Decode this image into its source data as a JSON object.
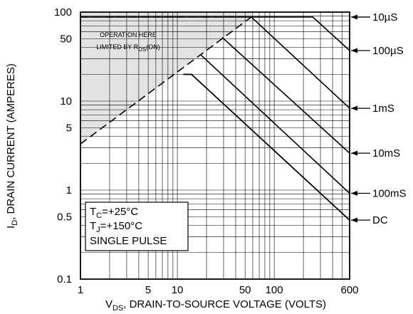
{
  "chart_data": {
    "type": "line",
    "x_axis": {
      "scale": "log",
      "range": [
        1,
        600
      ],
      "ticks": [
        {
          "value": 1,
          "label": "1"
        },
        {
          "value": 5,
          "label": "5"
        },
        {
          "value": 10,
          "label": "10"
        },
        {
          "value": 50,
          "label": "50"
        },
        {
          "value": 100,
          "label": "100"
        },
        {
          "value": 600,
          "label": "600"
        }
      ],
      "label_parts": [
        "V",
        "DS",
        ", DRAIN-TO-SOURCE VOLTAGE (VOLTS)"
      ]
    },
    "y_axis": {
      "scale": "log",
      "range": [
        0.1,
        100
      ],
      "ticks": [
        {
          "value": 100,
          "label": "100"
        },
        {
          "value": 50,
          "label": "50"
        },
        {
          "value": 10,
          "label": "10"
        },
        {
          "value": 5,
          "label": "5"
        },
        {
          "value": 1,
          "label": "1"
        },
        {
          "value": 0.5,
          "label": "0.5"
        },
        {
          "value": 0.1,
          "label": "0.1"
        }
      ],
      "label_parts": [
        "I",
        "D",
        ", DRAIN CURRENT (AMPERES)"
      ]
    },
    "grid": true,
    "series": [
      {
        "name": "10µS",
        "points": [
          [
            1,
            88
          ],
          [
            58,
            88
          ],
          [
            250,
            88
          ],
          [
            600,
            37
          ]
        ]
      },
      {
        "name": "100µS",
        "points": [
          [
            58,
            88
          ],
          [
            600,
            8.3
          ]
        ]
      },
      {
        "name": "1mS",
        "points": [
          [
            29,
            52
          ],
          [
            600,
            2.6
          ]
        ]
      },
      {
        "name": "10mS",
        "points": [
          [
            17.5,
            33
          ],
          [
            600,
            0.92
          ]
        ]
      },
      {
        "name": "100mS",
        "points": [
          [
            11.5,
            20
          ],
          [
            14,
            20
          ],
          [
            600,
            0.46
          ]
        ]
      },
      {
        "name": "DC",
        "points": [
          [
            11.5,
            20
          ],
          [
            14,
            20
          ],
          [
            600,
            0.46
          ]
        ]
      }
    ],
    "rds_on_limit": {
      "style": "dashed",
      "points": [
        [
          1,
          3.3
        ],
        [
          58,
          88
        ]
      ],
      "label_parts": [
        "OPERATION HERE",
        "LIMITED BY R",
        "DS",
        "(ON)"
      ]
    },
    "curve_labels": [
      {
        "text": "10µS",
        "points_to": [
          600,
          88
        ]
      },
      {
        "text": "100µS",
        "points_to": [
          600,
          37
        ]
      },
      {
        "text": "1mS",
        "points_to": [
          600,
          8.3
        ]
      },
      {
        "text": "10mS",
        "points_to": [
          600,
          2.6
        ]
      },
      {
        "text": "100mS",
        "points_to": [
          600,
          0.92
        ]
      },
      {
        "text": "DC",
        "points_to": [
          600,
          0.46
        ]
      }
    ],
    "conditions": {
      "tc": [
        "T",
        "C",
        "=+25°C"
      ],
      "tj": [
        "T",
        "J",
        "=+150°C"
      ],
      "pulse": "SINGLE PULSE"
    }
  }
}
